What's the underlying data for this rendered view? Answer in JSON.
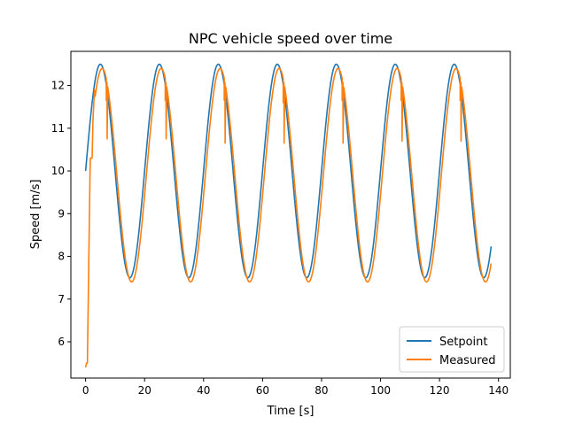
{
  "chart_data": {
    "type": "line",
    "title": "NPC vehicle speed over time",
    "xlabel": "Time [s]",
    "ylabel": "Speed [m/s]",
    "xlim": [
      -5,
      144
    ],
    "ylim": [
      5.15,
      12.8
    ],
    "xticks": [
      0,
      20,
      40,
      60,
      80,
      100,
      120,
      140
    ],
    "yticks": [
      6,
      7,
      8,
      9,
      10,
      11,
      12
    ],
    "grid": false,
    "legend_position": "bottom-right",
    "series": [
      {
        "name": "Setpoint",
        "color": "#1f77b4",
        "model": {
          "kind": "sine",
          "offset": 10,
          "amplitude": 2.5,
          "period": 20,
          "t_start": 0,
          "t_end": 137.5,
          "step": 0.25
        }
      },
      {
        "name": "Measured",
        "color": "#ff7f0e",
        "model": {
          "kind": "lagged-sine",
          "offset": 9.9,
          "amplitude": 2.5,
          "period": 20,
          "lag": 0.6,
          "t_start": 0,
          "t_end": 137.5,
          "step": 0.25
        },
        "startup": [
          [
            0,
            5.4
          ],
          [
            0.3,
            5.5
          ],
          [
            0.6,
            5.5
          ],
          [
            1.0,
            7.5
          ],
          [
            1.5,
            10.0
          ],
          [
            1.6,
            10.3
          ],
          [
            2.2,
            10.3
          ],
          [
            2.5,
            11.2
          ],
          [
            3.0,
            11.9
          ]
        ],
        "spikes": [
          [
            7.0,
            11.65
          ],
          [
            7.3,
            10.75
          ],
          [
            27.0,
            11.65
          ],
          [
            27.3,
            10.75
          ],
          [
            47.0,
            11.65
          ],
          [
            47.3,
            10.65
          ],
          [
            67.0,
            11.6
          ],
          [
            67.3,
            10.65
          ],
          [
            87.0,
            11.65
          ],
          [
            87.3,
            10.65
          ],
          [
            107.0,
            11.65
          ],
          [
            107.3,
            10.7
          ],
          [
            127.0,
            11.65
          ],
          [
            127.3,
            10.7
          ]
        ]
      }
    ]
  }
}
